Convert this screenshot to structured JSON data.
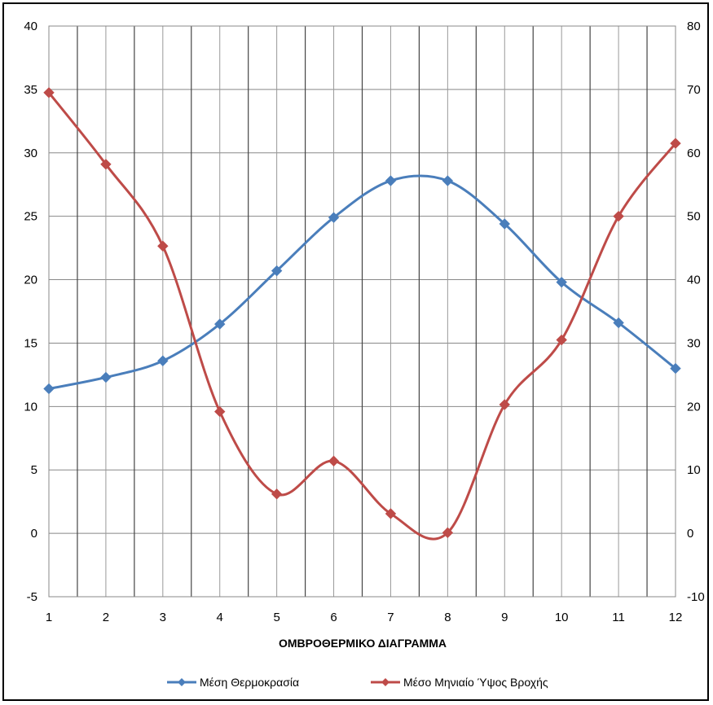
{
  "chart_data": {
    "type": "line",
    "title": "",
    "xlabel": "ΟΜΒΡΟΘΕΡΜΙΚΟ ΔΙΑΓΡΑΜΜΑ",
    "x": [
      1,
      2,
      3,
      4,
      5,
      6,
      7,
      8,
      9,
      10,
      11,
      12
    ],
    "x_tick_labels": [
      "1",
      "2",
      "3",
      "4",
      "5",
      "6",
      "7",
      "8",
      "9",
      "10",
      "11",
      "12"
    ],
    "ylim_left": [
      -5,
      40
    ],
    "y_ticks_left": [
      "-5",
      "0",
      "5",
      "10",
      "15",
      "20",
      "25",
      "30",
      "35",
      "40"
    ],
    "ylim_right": [
      -10,
      80
    ],
    "y_ticks_right": [
      "-10",
      "0",
      "10",
      "20",
      "30",
      "40",
      "50",
      "60",
      "70",
      "80"
    ],
    "grid": true,
    "legend_position": "bottom",
    "series": [
      {
        "name": "Μέση Θερμοκρασία",
        "axis": "left",
        "color": "#4A7EBB",
        "marker": "diamond",
        "smooth": true,
        "values": [
          11.4,
          12.3,
          13.6,
          16.5,
          20.7,
          24.9,
          27.8,
          27.8,
          24.4,
          19.8,
          16.6,
          13.0
        ]
      },
      {
        "name": "Μέσο Μηνιαίο Ύψος Βροχής",
        "axis": "right",
        "color": "#BE4B48",
        "marker": "diamond",
        "smooth": true,
        "values": [
          69.5,
          58.2,
          45.3,
          19.2,
          6.2,
          11.4,
          3.1,
          0.1,
          20.3,
          30.5,
          50.0,
          61.5
        ]
      }
    ]
  }
}
